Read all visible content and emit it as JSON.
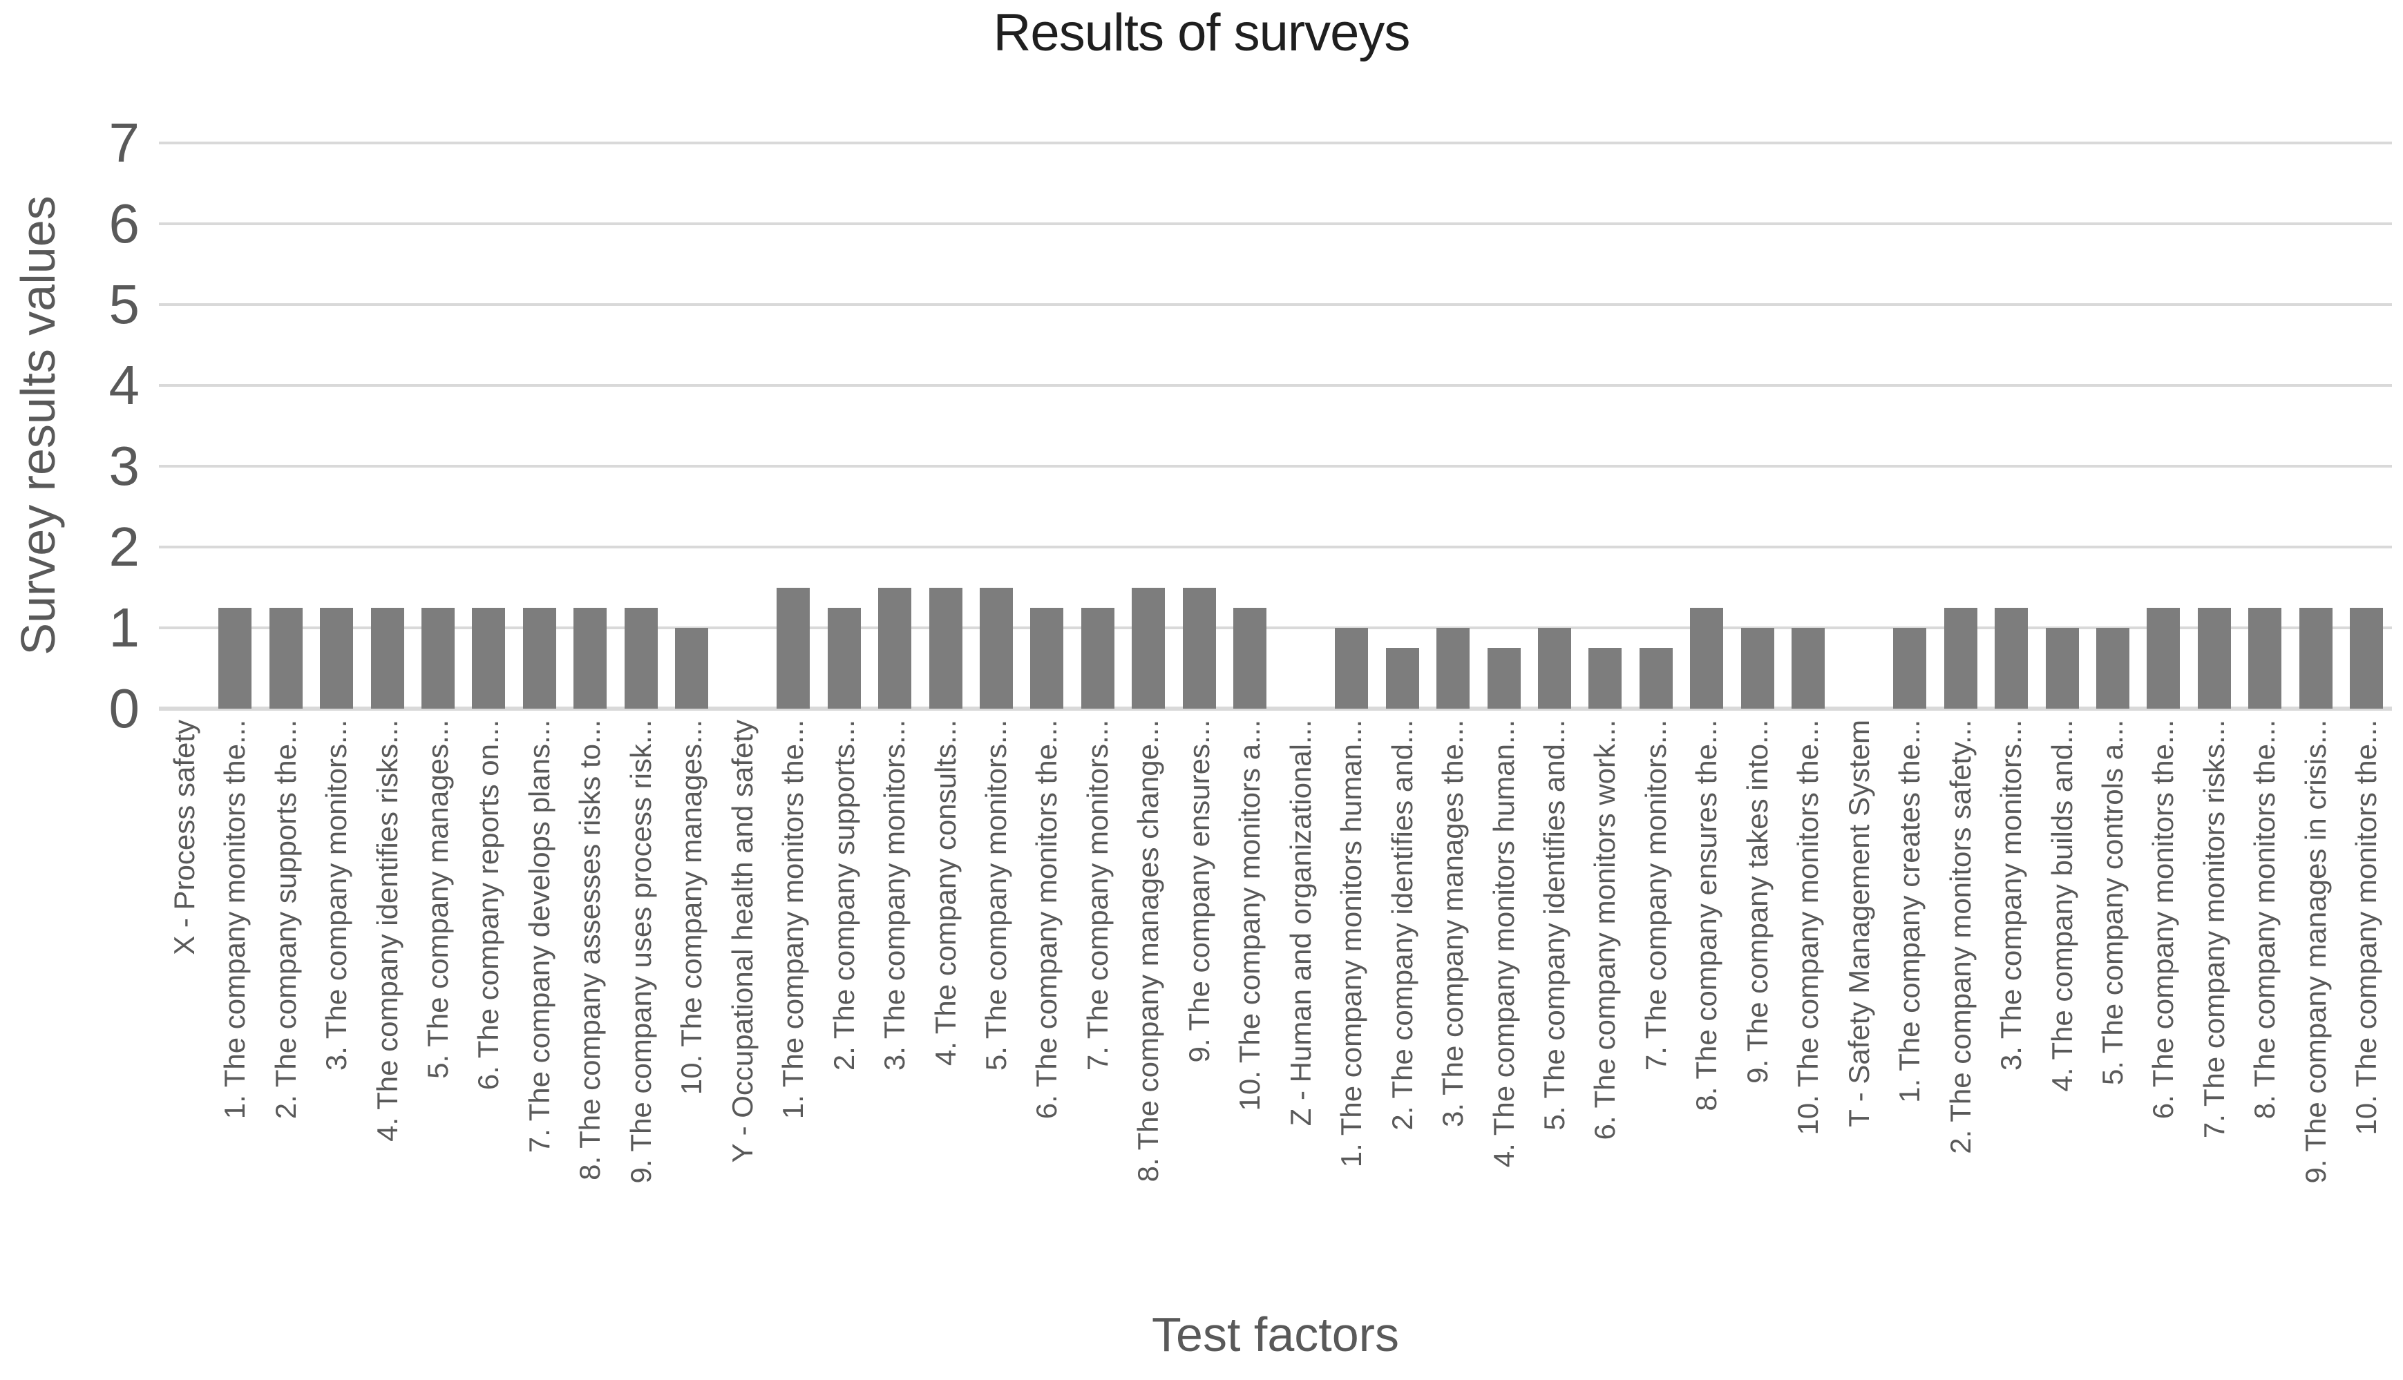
{
  "chart_data": {
    "type": "bar",
    "title": "Results of surveys",
    "xlabel": "Test factors",
    "ylabel": "Survey results values",
    "ylim": [
      0,
      7
    ],
    "yticks": [
      0,
      1,
      2,
      3,
      4,
      5,
      6,
      7
    ],
    "grid": true,
    "legend": "none",
    "colors": {
      "bar": "#7d7d7d",
      "gridline": "#d9d9d9",
      "axis_text": "#595959",
      "title_text": "#1f1f1f"
    },
    "categories": [
      "X - Process safety",
      "1. The company monitors the...",
      "2. The company supports the...",
      "3. The company monitors...",
      "4. The company identifies risks...",
      "5. The company manages...",
      "6. The company reports on...",
      "7. The company develops plans...",
      "8. The company assesses risks to...",
      "9. The company uses process risk...",
      "10. The company manages...",
      "Y - Occupational health and safety",
      "1. The company monitors the...",
      "2. The company supports...",
      "3. The company monitors...",
      "4. The company consults...",
      "5. The company monitors...",
      "6. The company monitors the...",
      "7. The company monitors...",
      "8. The company manages change...",
      "9. The company ensures...",
      "10. The company monitors a...",
      "Z - Human and organizational...",
      "1. The company monitors human...",
      "2. The company identifies and...",
      "3. The company manages the...",
      "4. The company monitors human...",
      "5. The company identifies and...",
      "6. The company monitors work...",
      "7. The company monitors...",
      "8. The company ensures the...",
      "9. The company takes into...",
      "10. The company monitors the...",
      "T - Safety Management System",
      "1. The company creates the...",
      "2. The company monitors safety...",
      "3. The company monitors...",
      "4. The company builds and...",
      "5. The company controls a...",
      "6. The company monitors the...",
      "7. The company monitors risks...",
      "8. The company monitors the...",
      "9. The company manages in crisis...",
      "10. The company monitors the..."
    ],
    "values": [
      null,
      1.25,
      1.25,
      1.25,
      1.25,
      1.25,
      1.25,
      1.25,
      1.25,
      1.25,
      1.0,
      null,
      1.5,
      1.25,
      1.5,
      1.5,
      1.5,
      1.25,
      1.25,
      1.5,
      1.5,
      1.25,
      null,
      1.0,
      0.75,
      1.0,
      0.75,
      1.0,
      0.75,
      0.75,
      1.25,
      1.0,
      1.0,
      null,
      1.0,
      1.25,
      1.25,
      1.0,
      1.0,
      1.25,
      1.25,
      1.25,
      1.25,
      1.25
    ]
  }
}
